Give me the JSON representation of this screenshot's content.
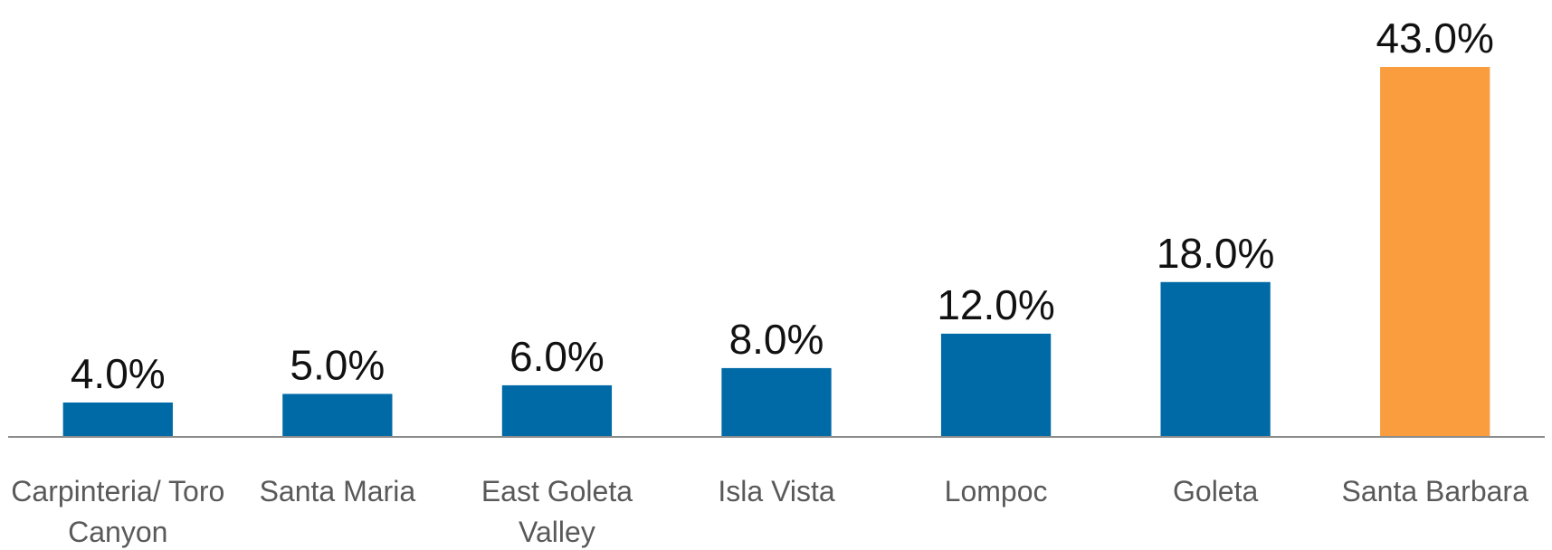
{
  "chart_data": {
    "type": "bar",
    "categories": [
      "Carpinteria/ Toro Canyon",
      "Santa Maria",
      "East Goleta Valley",
      "Isla Vista",
      "Lompoc",
      "Goleta",
      "Santa Barbara"
    ],
    "values": [
      4,
      5,
      6,
      8,
      12,
      18,
      43
    ],
    "value_labels": [
      "4.0%",
      "5.0%",
      "6.0%",
      "8.0%",
      "12.0%",
      "18.0%",
      "43.0%"
    ],
    "colors": [
      "#006aa7",
      "#006aa7",
      "#006aa7",
      "#006aa7",
      "#006aa7",
      "#006aa7",
      "#f99d3e"
    ],
    "ylim": [
      0,
      43
    ]
  }
}
